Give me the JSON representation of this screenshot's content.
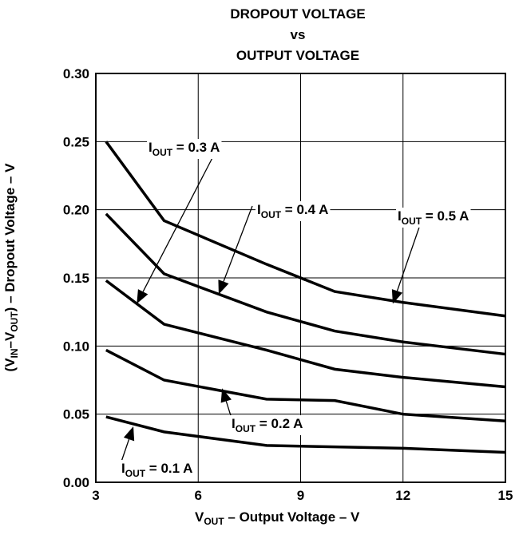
{
  "chart_data": {
    "type": "line",
    "title_lines": [
      "DROPOUT VOLTAGE",
      "vs",
      "OUTPUT VOLTAGE"
    ],
    "xlabel": {
      "main": "V",
      "sub": "OUT",
      "rest": " – Output Voltage – V"
    },
    "ylabel": {
      "a": "(V",
      "a_sub": "IN",
      "b": "–V",
      "b_sub": "OUT",
      "c": ") – Dropout Voltage – V"
    },
    "xlim": [
      3,
      15
    ],
    "ylim": [
      0,
      0.3
    ],
    "xticks": [
      "3",
      "6",
      "9",
      "12",
      "15"
    ],
    "yticks": [
      "0.00",
      "0.05",
      "0.10",
      "0.15",
      "0.20",
      "0.25",
      "0.30"
    ],
    "grid": true,
    "series": [
      {
        "name": "I_OUT = 0.1 A",
        "x": [
          3.3,
          5,
          8,
          10,
          12,
          15
        ],
        "y": [
          0.048,
          0.037,
          0.027,
          0.026,
          0.025,
          0.022
        ]
      },
      {
        "name": "I_OUT = 0.2 A",
        "x": [
          3.3,
          5,
          8,
          10,
          12,
          15
        ],
        "y": [
          0.097,
          0.075,
          0.061,
          0.06,
          0.05,
          0.045
        ]
      },
      {
        "name": "I_OUT = 0.3 A",
        "x": [
          3.3,
          5,
          8,
          10,
          12,
          15
        ],
        "y": [
          0.148,
          0.116,
          0.097,
          0.083,
          0.077,
          0.07
        ]
      },
      {
        "name": "I_OUT = 0.4 A",
        "x": [
          3.3,
          5,
          8,
          10,
          12,
          15
        ],
        "y": [
          0.197,
          0.153,
          0.125,
          0.111,
          0.103,
          0.094
        ]
      },
      {
        "name": "I_OUT = 0.5 A",
        "x": [
          3.3,
          5,
          8,
          10,
          12,
          15
        ],
        "y": [
          0.25,
          0.192,
          0.16,
          0.14,
          0.132,
          0.122
        ]
      }
    ],
    "annotations": [
      {
        "series": 0,
        "prefix": "I",
        "sub": "OUT",
        "value": " = 0.1 A",
        "arrow_to": [
          4.1,
          0.041
        ]
      },
      {
        "series": 1,
        "prefix": "I",
        "sub": "OUT",
        "value": " = 0.2 A",
        "arrow_to": [
          6.7,
          0.069
        ]
      },
      {
        "series": 2,
        "prefix": "I",
        "sub": "OUT",
        "value": " = 0.3 A",
        "arrow_to": [
          4.2,
          0.131
        ]
      },
      {
        "series": 3,
        "prefix": "I",
        "sub": "OUT",
        "value": " = 0.4 A",
        "arrow_to": [
          6.6,
          0.138
        ]
      },
      {
        "series": 4,
        "prefix": "I",
        "sub": "OUT",
        "value": " = 0.5 A",
        "arrow_to": [
          11.7,
          0.131
        ]
      }
    ]
  }
}
